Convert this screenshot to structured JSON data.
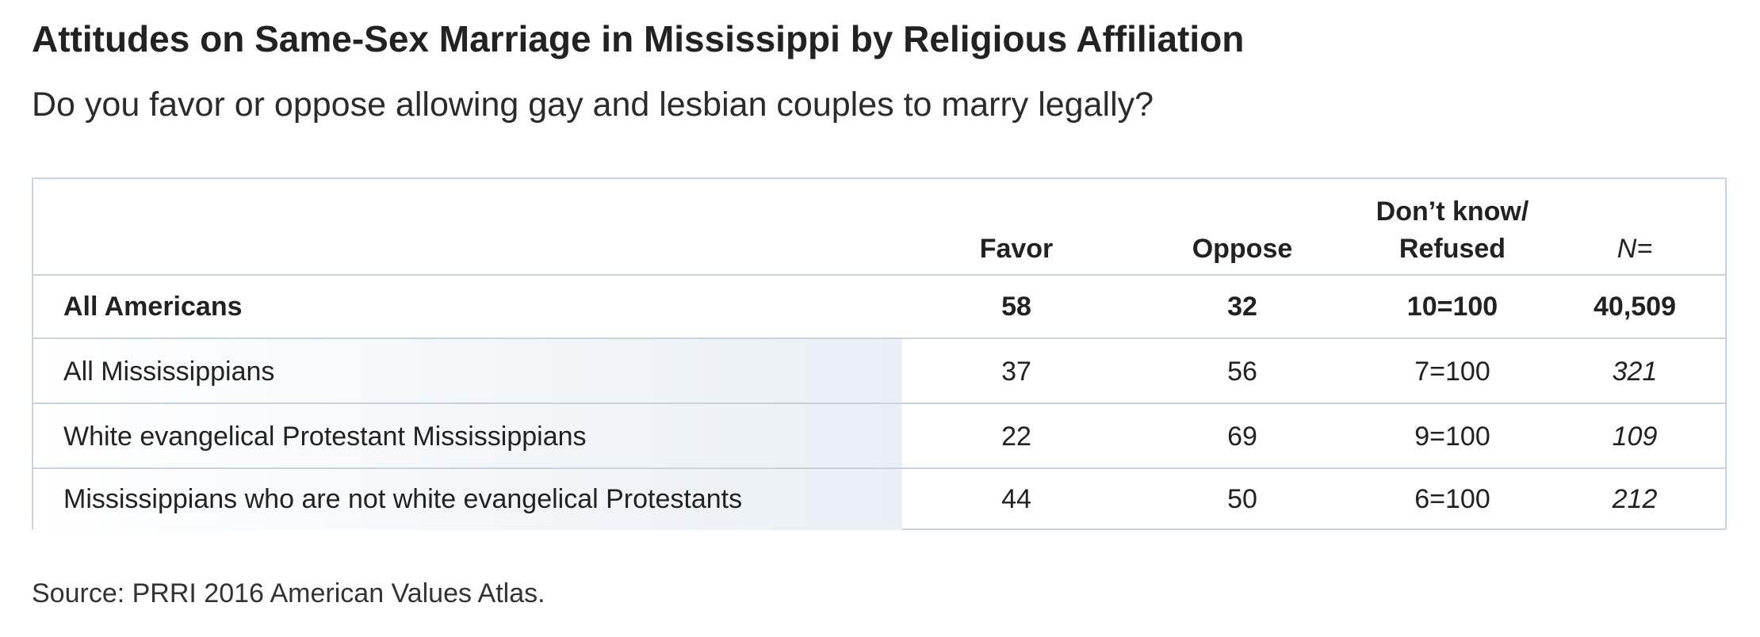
{
  "title": "Attitudes on Same-Sex Marriage in Mississippi by Religious Affiliation",
  "subtitle": "Do you favor or oppose allowing gay and lesbian couples to marry legally?",
  "source": "Source: PRRI 2016 American Values Atlas.",
  "colors": {
    "border": "#c9d3de",
    "text": "#222222",
    "row_shade": "#e9eff5"
  },
  "chart_data": {
    "type": "table",
    "title": "Attitudes on Same-Sex Marriage in Mississippi by Religious Affiliation",
    "subtitle": "Do you favor or oppose allowing gay and lesbian couples to marry legally?",
    "columns": {
      "favor": "Favor",
      "oppose": "Oppose",
      "dk_line1": "Don’t know/",
      "dk_line2": "Refused",
      "n": "N="
    },
    "rows": [
      {
        "label": "All Americans",
        "favor": "58",
        "oppose": "32",
        "dk": "10=100",
        "n": "40,509"
      },
      {
        "label": "All Mississippians",
        "favor": "37",
        "oppose": "56",
        "dk": "7=100",
        "n": "321"
      },
      {
        "label": "White evangelical Protestant Mississippians",
        "favor": "22",
        "oppose": "69",
        "dk": "9=100",
        "n": "109"
      },
      {
        "label": "Mississippians who are not white evangelical Protestants",
        "favor": "44",
        "oppose": "50",
        "dk": "6=100",
        "n": "212"
      }
    ]
  }
}
